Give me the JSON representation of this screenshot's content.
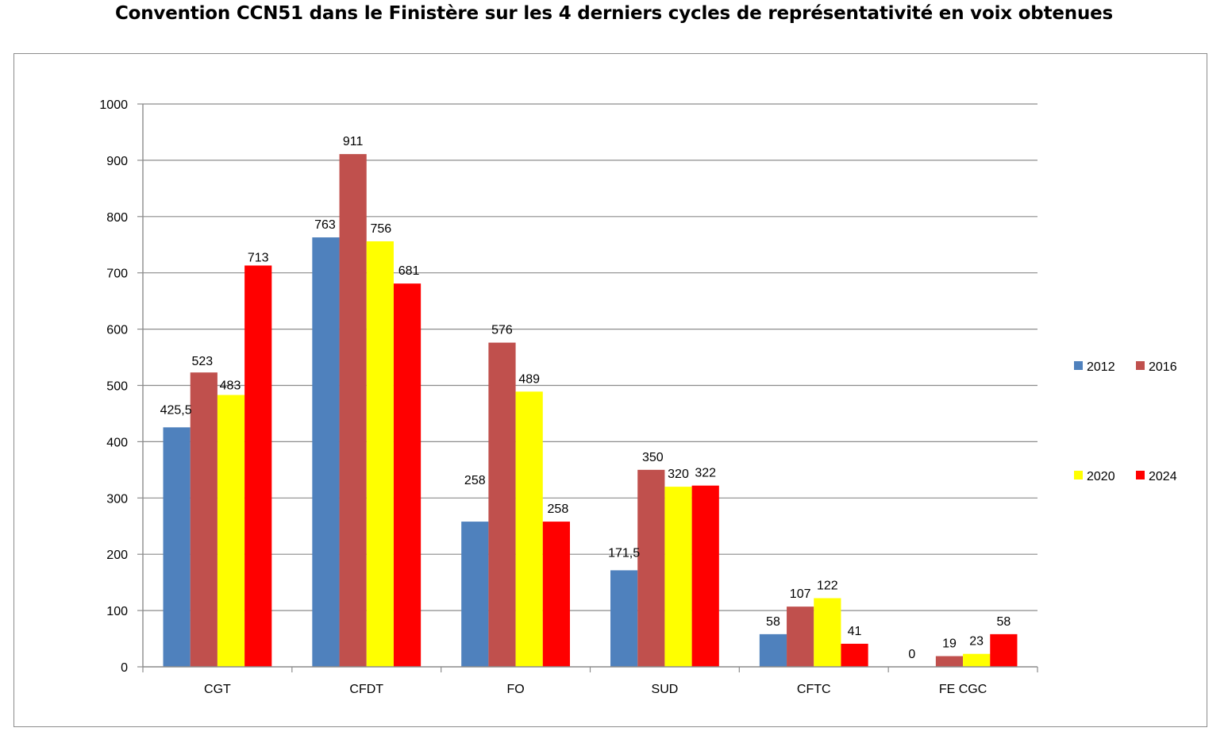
{
  "chart_data": {
    "type": "bar",
    "title": "Convention CCN51 dans le Finistère sur les 4 derniers cycles de représentativité en voix obtenues",
    "xlabel": "",
    "ylabel": "",
    "ylim": [
      0,
      1000
    ],
    "yticks": [
      0,
      100,
      200,
      300,
      400,
      500,
      600,
      700,
      800,
      900,
      1000
    ],
    "grid": true,
    "legend_position": "right",
    "categories": [
      "CGT",
      "CFDT",
      "FO",
      "SUD",
      "CFTC",
      "FE CGC"
    ],
    "series": [
      {
        "name": "2012",
        "color": "#4f81bd",
        "values": [
          425.5,
          763,
          258,
          171.5,
          58,
          0
        ],
        "labels": [
          "425,5",
          "763",
          "258",
          "171,5",
          "58",
          "0"
        ]
      },
      {
        "name": "2016",
        "color": "#c0504d",
        "values": [
          523,
          911,
          576,
          350,
          107,
          19
        ],
        "labels": [
          "523",
          "911",
          "576",
          "350",
          "107",
          "19"
        ]
      },
      {
        "name": "2020",
        "color": "#ffff00",
        "values": [
          483,
          756,
          489,
          320,
          122,
          23
        ],
        "labels": [
          "483",
          "756",
          "489",
          "320",
          "122",
          "23"
        ]
      },
      {
        "name": "2024",
        "color": "#ff0000",
        "values": [
          713,
          681,
          258,
          322,
          41,
          58
        ],
        "labels": [
          "713",
          "681",
          "258",
          "322",
          "41",
          "58"
        ]
      }
    ]
  }
}
